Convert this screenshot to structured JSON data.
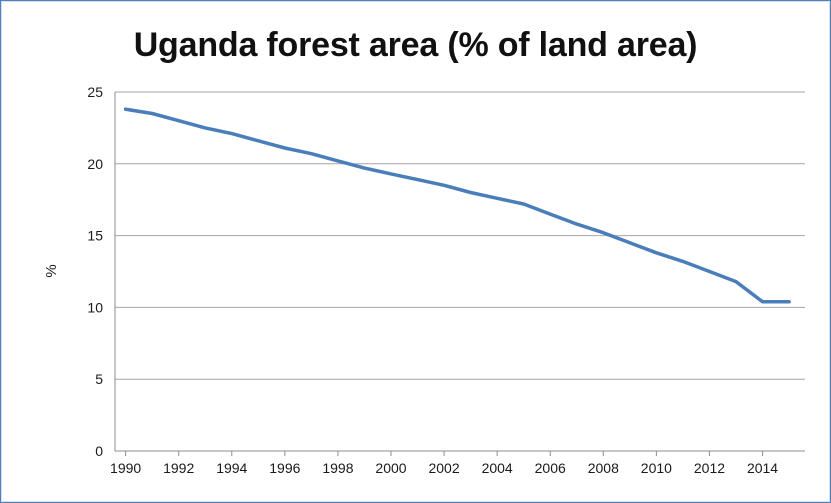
{
  "chart_data": {
    "type": "line",
    "title": "Uganda forest area (% of land area)",
    "xlabel": "",
    "ylabel": "%",
    "xlim": [
      1989.6,
      2015.6
    ],
    "ylim": [
      0,
      25
    ],
    "grid": true,
    "legend": "none",
    "x_tick_labels": [
      "1990",
      "1992",
      "1994",
      "1996",
      "1998",
      "2000",
      "2002",
      "2004",
      "2006",
      "2008",
      "2010",
      "2012",
      "2014"
    ],
    "y_tick_labels": [
      "0",
      "5",
      "10",
      "15",
      "20",
      "25"
    ],
    "x_ticks": [
      1990,
      1992,
      1994,
      1996,
      1998,
      2000,
      2002,
      2004,
      2006,
      2008,
      2010,
      2012,
      2014
    ],
    "y_ticks": [
      0,
      5,
      10,
      15,
      20,
      25
    ],
    "series": [
      {
        "color": "#4a7ebb",
        "x": [
          1990,
          1991,
          1992,
          1993,
          1994,
          1995,
          1996,
          1997,
          1998,
          1999,
          2000,
          2001,
          2002,
          2003,
          2004,
          2005,
          2006,
          2007,
          2008,
          2009,
          2010,
          2011,
          2012,
          2013,
          2014,
          2015
        ],
        "values": [
          23.8,
          23.5,
          23.0,
          22.5,
          22.1,
          21.6,
          21.1,
          20.7,
          20.2,
          19.7,
          19.3,
          18.9,
          18.5,
          18.0,
          17.6,
          17.2,
          16.5,
          15.8,
          15.2,
          14.5,
          13.8,
          13.2,
          12.5,
          11.8,
          10.4,
          10.4
        ]
      }
    ]
  }
}
